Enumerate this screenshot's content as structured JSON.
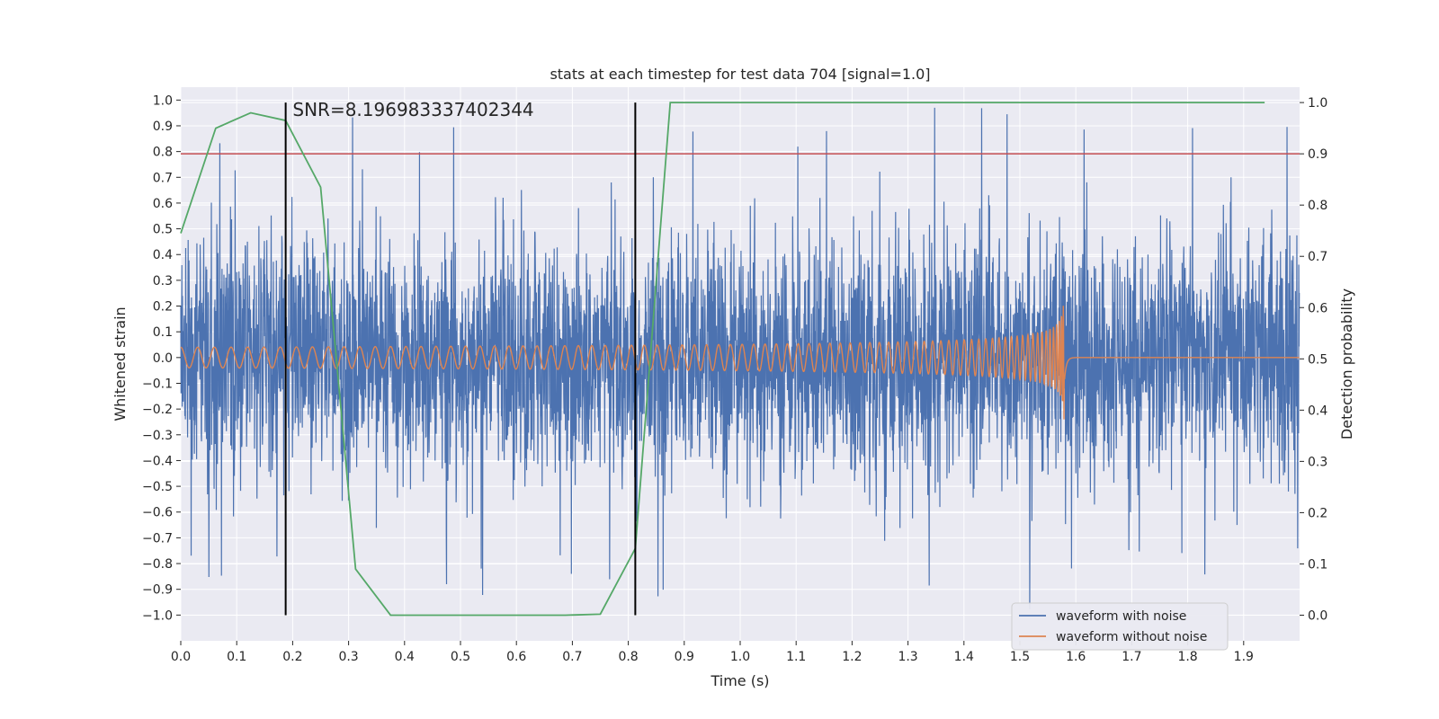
{
  "chart_data": {
    "type": "line",
    "title": "stats at each timestep for test data 704 [signal=1.0]",
    "xlabel": "Time (s)",
    "ylabel_left": "Whitened strain",
    "ylabel_right": "Detection probability",
    "xlim": [
      0.0,
      2.0
    ],
    "ylim_left": [
      -1.1,
      1.05
    ],
    "ylim_right": [
      -0.05,
      1.03
    ],
    "x_ticks": [
      0.0,
      0.1,
      0.2,
      0.3,
      0.4,
      0.5,
      0.6,
      0.7,
      0.8,
      0.9,
      1.0,
      1.1,
      1.2,
      1.3,
      1.4,
      1.5,
      1.6,
      1.7,
      1.8,
      1.9
    ],
    "x_tick_labels": [
      "0.0",
      "0.1",
      "0.2",
      "0.3",
      "0.4",
      "0.5",
      "0.6",
      "0.7",
      "0.8",
      "0.9",
      "1.0",
      "1.1",
      "1.2",
      "1.3",
      "1.4",
      "1.5",
      "1.6",
      "1.7",
      "1.8",
      "1.9"
    ],
    "y_left_ticks": [
      1.0,
      0.9,
      0.8,
      0.7,
      0.6,
      0.5,
      0.4,
      0.3,
      0.2,
      0.1,
      0.0,
      -0.1,
      -0.2,
      -0.3,
      -0.4,
      -0.5,
      -0.6,
      -0.7,
      -0.8,
      -0.9,
      -1.0
    ],
    "y_left_tick_labels": [
      "1.0",
      "0.9",
      "0.8",
      "0.7",
      "0.6",
      "0.5",
      "0.4",
      "0.3",
      "0.2",
      "0.1",
      "0.0",
      "−0.1",
      "−0.2",
      "−0.3",
      "−0.4",
      "−0.5",
      "−0.6",
      "−0.7",
      "−0.8",
      "−0.9",
      "−1.0"
    ],
    "y_right_ticks": [
      1.0,
      0.9,
      0.8,
      0.7,
      0.6,
      0.5,
      0.4,
      0.3,
      0.2,
      0.1,
      0.0
    ],
    "y_right_tick_labels": [
      "1.0",
      "0.9",
      "0.8",
      "0.7",
      "0.6",
      "0.5",
      "0.4",
      "0.3",
      "0.2",
      "0.1",
      "0.0"
    ],
    "grid": true,
    "annotation": "SNR=8.196983337402344",
    "annotation_x": 0.2,
    "annotation_y": 0.96,
    "series": [
      {
        "name": "waveform with noise",
        "axis": "left",
        "color": "#4c72b0",
        "style": "noise",
        "amplitude_typical": 0.3,
        "peak_abs": 1.0
      },
      {
        "name": "waveform without noise",
        "axis": "left",
        "color": "#dd8452",
        "style": "chirp",
        "start_frequency_hz": 33,
        "merger_time": 1.58,
        "amplitude_start": 0.04,
        "amplitude_peak": 0.25
      },
      {
        "name": "detection probability",
        "axis": "right",
        "color": "#55a868",
        "in_legend": false,
        "x": [
          0.0,
          0.0625,
          0.125,
          0.1875,
          0.25,
          0.3125,
          0.375,
          0.4375,
          0.5,
          0.5625,
          0.625,
          0.6875,
          0.75,
          0.8125,
          0.875,
          0.9375,
          1.9375
        ],
        "y": [
          0.745,
          0.95,
          0.98,
          0.965,
          0.835,
          0.09,
          0.0,
          0.0,
          0.0,
          0.0,
          0.0,
          0.0,
          0.002,
          0.13,
          1.0,
          1.0,
          1.0
        ]
      }
    ],
    "threshold_line": {
      "axis": "right",
      "value": 0.9,
      "color": "#c44e52"
    },
    "vertical_markers": [
      {
        "x": 0.1875,
        "y_from": 0.0,
        "y_to": 1.0,
        "color": "#000000"
      },
      {
        "x": 0.8125,
        "y_from": 0.0,
        "y_to": 1.0,
        "color": "#000000"
      }
    ],
    "legend": {
      "location": "lower-right",
      "entries": [
        {
          "label": "waveform with noise",
          "color": "#4c72b0"
        },
        {
          "label": "waveform without noise",
          "color": "#dd8452"
        }
      ]
    }
  }
}
